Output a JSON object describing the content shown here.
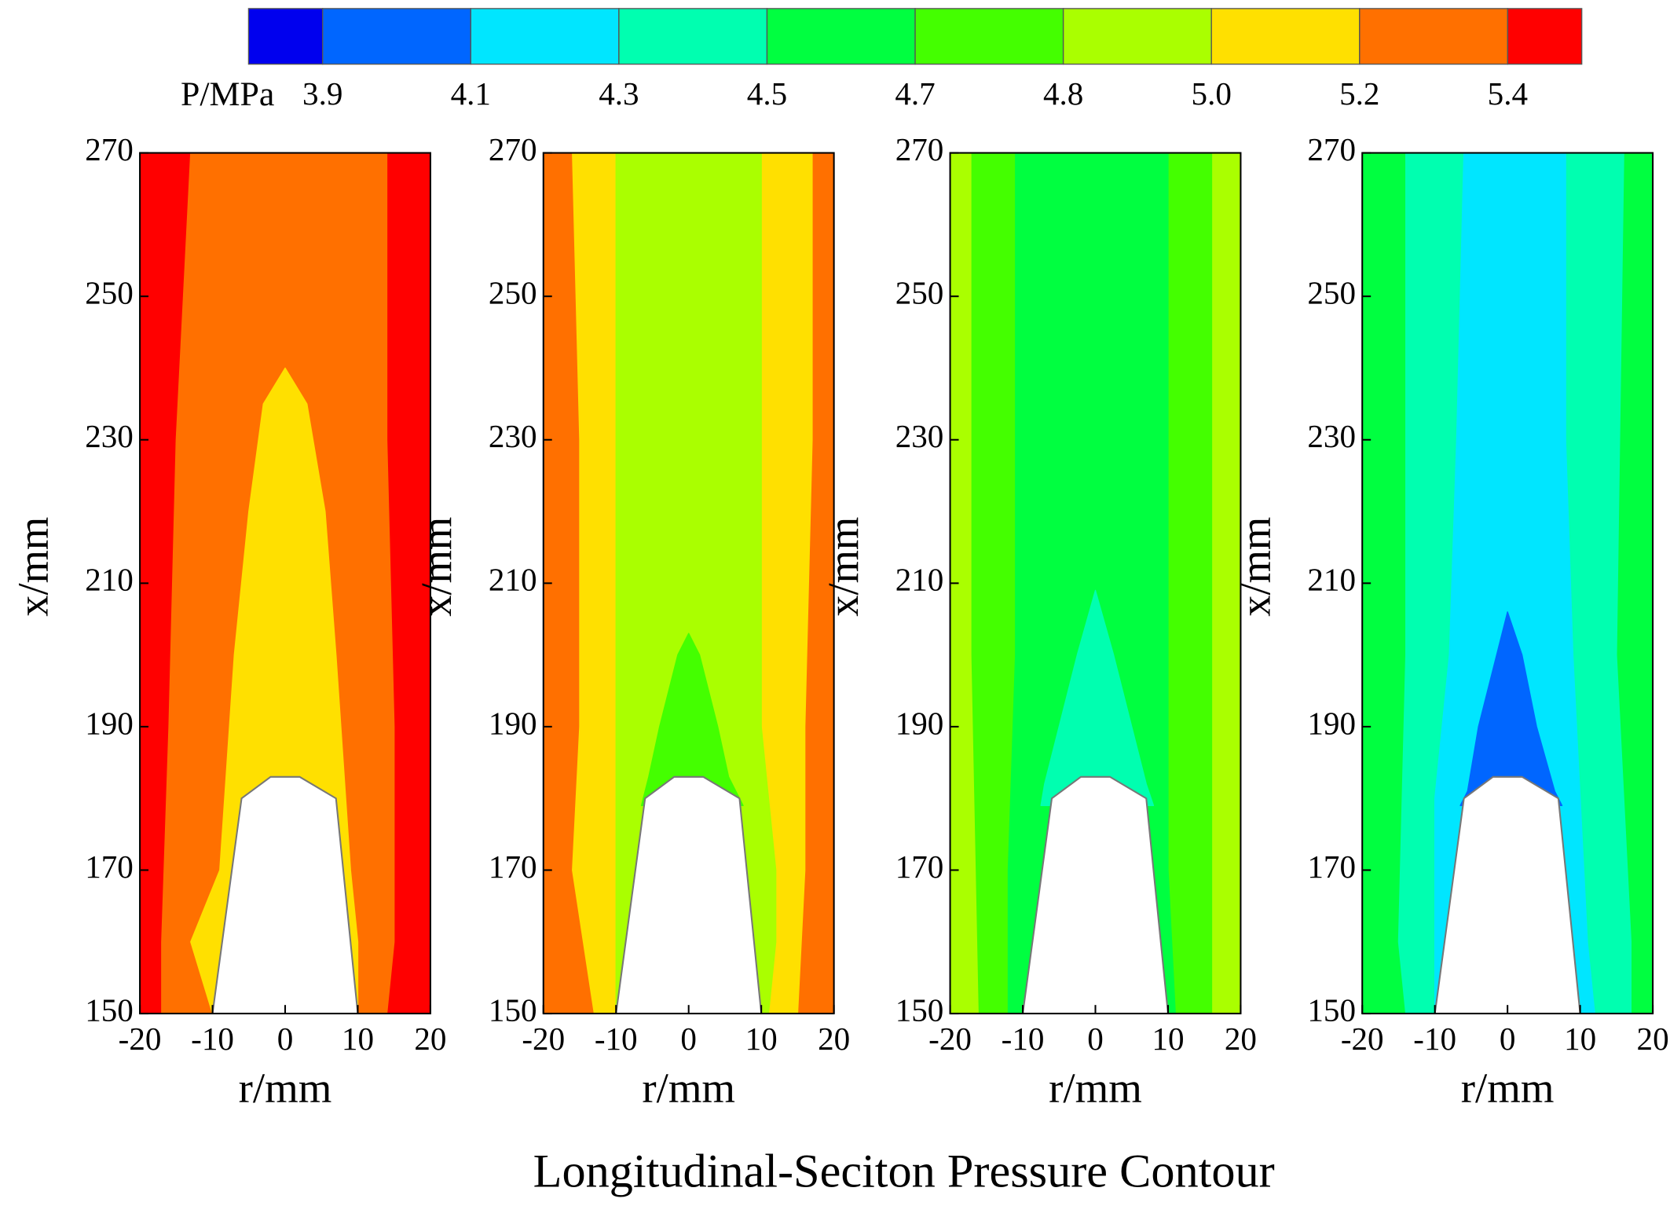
{
  "chart_data": {
    "type": "contour",
    "title": "Longitudinal-Seciton Pressure Contour",
    "colorbar": {
      "label": "P/MPa",
      "colors": [
        "#0000ee",
        "#0066ff",
        "#00e6ff",
        "#00ffb0",
        "#00ff40",
        "#44ff00",
        "#aaff00",
        "#ffe000",
        "#ff7000",
        "#ff0000"
      ],
      "ticks": [
        3.9,
        4.1,
        4.3,
        4.5,
        4.7,
        4.8,
        {
          "value": 5,
          "label": "5.0"
        },
        5.2,
        5.4
      ]
    },
    "panels": [
      {
        "xlabel": "r/mm",
        "ylabel": "x/mm",
        "xlim": [
          -20,
          20
        ],
        "ylim": [
          150,
          270
        ],
        "xticks": [
          -20,
          -10,
          0,
          10,
          20
        ],
        "yticks": [
          150,
          170,
          190,
          210,
          230,
          250,
          270
        ]
      },
      {
        "xlabel": "r/mm",
        "ylabel": "x/mm",
        "xlim": [
          -20,
          20
        ],
        "ylim": [
          150,
          270
        ],
        "xticks": [
          -20,
          -10,
          0,
          10,
          20
        ],
        "yticks": [
          150,
          170,
          190,
          210,
          230,
          250,
          270
        ]
      },
      {
        "xlabel": "r/mm",
        "ylabel": "x/mm",
        "xlim": [
          -20,
          20
        ],
        "ylim": [
          150,
          270
        ],
        "xticks": [
          -20,
          -10,
          0,
          10,
          20
        ],
        "yticks": [
          150,
          170,
          190,
          210,
          230,
          250,
          270
        ]
      },
      {
        "xlabel": "r/mm",
        "ylabel": "x/mm",
        "xlim": [
          -20,
          20
        ],
        "ylim": [
          150,
          270
        ],
        "xticks": [
          -20,
          -10,
          0,
          10,
          20
        ],
        "yticks": [
          150,
          170,
          190,
          210,
          230,
          250,
          270
        ]
      }
    ]
  }
}
